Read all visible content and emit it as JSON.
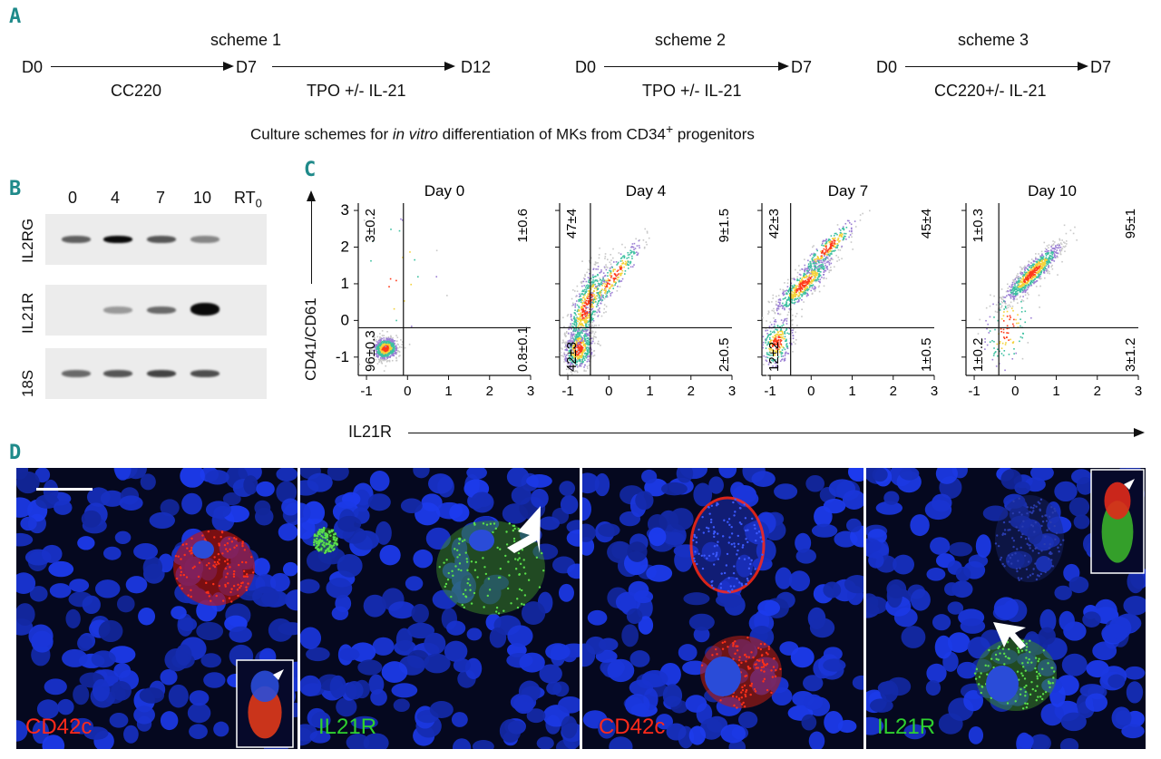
{
  "panels": {
    "A": "A",
    "B": "B",
    "C": "C",
    "D": "D"
  },
  "schemeA": {
    "s1": {
      "title": "scheme 1",
      "d0": "D0",
      "d7": "D7",
      "d12": "D12",
      "seg1": "CC220",
      "seg2": "TPO +/- IL-21"
    },
    "s2": {
      "title": "scheme 2",
      "d0": "D0",
      "d7": "D7",
      "seg1": "TPO +/- IL-21"
    },
    "s3": {
      "title": "scheme 3",
      "d0": "D0",
      "d7": "D7",
      "seg1": "CC220+/- IL-21"
    },
    "caption_pre": "Culture schemes for ",
    "caption_italic": "in vitro",
    "caption_post": " differentiation of MKs from CD34",
    "caption_sup": "+",
    "caption_end": " progenitors"
  },
  "gel": {
    "lanes": [
      "0",
      "4",
      "7",
      "10"
    ],
    "rt_main": "RT",
    "rt_sub": "0",
    "rows": [
      "IL2RG",
      "IL21R",
      "18S"
    ],
    "intensity": {
      "IL2RG": [
        0.55,
        1.0,
        0.6,
        0.35,
        0.0
      ],
      "IL21R": [
        0.0,
        0.25,
        0.5,
        1.0,
        0.0
      ],
      "18S": [
        0.5,
        0.6,
        0.7,
        0.65,
        0.0
      ]
    }
  },
  "flow": {
    "ylabel": "CD41/CD61",
    "xlabel": "IL21R",
    "xticks": [
      "-1",
      "0",
      "1",
      "2",
      "3"
    ],
    "yticks": [
      "3",
      "2",
      "1",
      "0",
      "-1"
    ],
    "plots": [
      {
        "title": "Day 0",
        "ul": "3±0.2",
        "ur": "1±0.6",
        "ll": "96±0.3",
        "lr": "0.8±0.1"
      },
      {
        "title": "Day 4",
        "ul": "47±4",
        "ur": "9±1.5",
        "ll": "42±3",
        "lr": "2±0.5"
      },
      {
        "title": "Day 7",
        "ul": "42±3",
        "ur": "45±4",
        "ll": "12±2",
        "lr": "1±0.5"
      },
      {
        "title": "Day 10",
        "ul": "1±0.3",
        "ur": "95±1",
        "ll": "1±0.2",
        "lr": "3±1.2"
      }
    ]
  },
  "micro": {
    "labels": [
      "CD42c",
      "IL21R",
      "CD42c",
      "IL21R"
    ],
    "colors": {
      "red": "#ff2a1a",
      "green": "#2fd12f",
      "blue": "#1a3cff"
    }
  }
}
